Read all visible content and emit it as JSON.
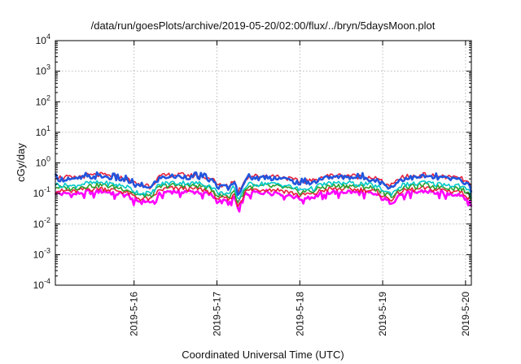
{
  "chart_data": {
    "type": "line",
    "title": "/data/run/goesPlots/archive/2019-05-20/02:00/flux/../bryn/5daysMoon.plot",
    "xlabel": "Coordinated Universal Time (UTC)",
    "ylabel": "cGy/day",
    "yscale": "log",
    "ylim": [
      0.0001,
      10000
    ],
    "xlim": [
      0.0,
      5.02
    ],
    "grid": true,
    "y_ticks": [
      {
        "base": "10",
        "exp": "-4",
        "value": 0.0001
      },
      {
        "base": "10",
        "exp": "-3",
        "value": 0.001
      },
      {
        "base": "10",
        "exp": "-2",
        "value": 0.01
      },
      {
        "base": "10",
        "exp": "-1",
        "value": 0.1
      },
      {
        "base": "10",
        "exp": "0",
        "value": 1
      },
      {
        "base": "10",
        "exp": "1",
        "value": 10
      },
      {
        "base": "10",
        "exp": "2",
        "value": 100
      },
      {
        "base": "10",
        "exp": "3",
        "value": 1000
      },
      {
        "base": "10",
        "exp": "4",
        "value": 10000
      }
    ],
    "x_ticks": [
      {
        "label": "2019-5-16",
        "value": 0.95
      },
      {
        "label": "2019-5-17",
        "value": 1.95
      },
      {
        "label": "2019-5-18",
        "value": 2.95
      },
      {
        "label": "2019-5-19",
        "value": 3.95
      },
      {
        "label": "2019-5-20",
        "value": 4.95
      }
    ],
    "series": [
      {
        "color": "#ff00ff",
        "level": 0.105
      },
      {
        "color": "#e8203a",
        "level": 0.13
      },
      {
        "color": "#2ca02c",
        "level": 0.165
      },
      {
        "color": "#00c8c8",
        "level": 0.2
      },
      {
        "color": "#e8203a",
        "level": 0.36
      },
      {
        "color": "#2255dd",
        "level": 0.32
      }
    ],
    "envelope": [
      [
        0.0,
        1.0
      ],
      [
        0.05,
        0.95
      ],
      [
        0.1,
        0.9
      ],
      [
        0.15,
        0.98
      ],
      [
        0.2,
        0.85
      ],
      [
        0.25,
        0.92
      ],
      [
        0.3,
        1.0
      ],
      [
        0.35,
        1.05
      ],
      [
        0.4,
        1.1
      ],
      [
        0.45,
        1.08
      ],
      [
        0.5,
        1.12
      ],
      [
        0.55,
        1.15
      ],
      [
        0.6,
        1.1
      ],
      [
        0.65,
        1.05
      ],
      [
        0.7,
        1.0
      ],
      [
        0.75,
        0.95
      ],
      [
        0.8,
        0.9
      ],
      [
        0.85,
        0.85
      ],
      [
        0.9,
        0.75
      ],
      [
        0.95,
        0.6
      ],
      [
        1.0,
        0.55
      ],
      [
        1.05,
        0.5
      ],
      [
        1.1,
        0.55
      ],
      [
        1.15,
        0.45
      ],
      [
        1.2,
        0.7
      ],
      [
        1.25,
        0.95
      ],
      [
        1.3,
        1.05
      ],
      [
        1.35,
        1.1
      ],
      [
        1.4,
        1.15
      ],
      [
        1.45,
        1.1
      ],
      [
        1.5,
        1.12
      ],
      [
        1.55,
        1.15
      ],
      [
        1.6,
        1.1
      ],
      [
        1.65,
        1.05
      ],
      [
        1.7,
        1.1
      ],
      [
        1.75,
        1.05
      ],
      [
        1.8,
        1.0
      ],
      [
        1.85,
        0.9
      ],
      [
        1.9,
        0.8
      ],
      [
        1.95,
        0.55
      ],
      [
        2.0,
        0.5
      ],
      [
        2.05,
        0.55
      ],
      [
        2.1,
        0.45
      ],
      [
        2.15,
        0.8
      ],
      [
        2.2,
        0.3
      ],
      [
        2.25,
        0.5
      ],
      [
        2.3,
        0.9
      ],
      [
        2.35,
        1.0
      ],
      [
        2.4,
        1.05
      ],
      [
        2.45,
        1.0
      ],
      [
        2.5,
        1.05
      ],
      [
        2.55,
        1.1
      ],
      [
        2.6,
        1.0
      ],
      [
        2.65,
        1.05
      ],
      [
        2.7,
        1.0
      ],
      [
        2.75,
        0.95
      ],
      [
        2.8,
        0.9
      ],
      [
        2.85,
        0.8
      ],
      [
        2.9,
        0.75
      ],
      [
        2.95,
        0.65
      ],
      [
        3.0,
        0.7
      ],
      [
        3.05,
        0.75
      ],
      [
        3.1,
        0.7
      ],
      [
        3.15,
        0.8
      ],
      [
        3.2,
        0.95
      ],
      [
        3.25,
        1.0
      ],
      [
        3.3,
        1.05
      ],
      [
        3.35,
        1.1
      ],
      [
        3.4,
        1.05
      ],
      [
        3.45,
        1.1
      ],
      [
        3.5,
        1.08
      ],
      [
        3.55,
        1.1
      ],
      [
        3.6,
        1.05
      ],
      [
        3.65,
        1.0
      ],
      [
        3.7,
        1.05
      ],
      [
        3.75,
        1.0
      ],
      [
        3.8,
        0.95
      ],
      [
        3.85,
        0.9
      ],
      [
        3.9,
        0.8
      ],
      [
        3.95,
        0.65
      ],
      [
        4.0,
        0.55
      ],
      [
        4.05,
        0.5
      ],
      [
        4.1,
        0.6
      ],
      [
        4.15,
        0.85
      ],
      [
        4.2,
        0.95
      ],
      [
        4.25,
        1.0
      ],
      [
        4.3,
        1.05
      ],
      [
        4.35,
        1.0
      ],
      [
        4.4,
        1.1
      ],
      [
        4.45,
        1.15
      ],
      [
        4.5,
        1.1
      ],
      [
        4.55,
        1.05
      ],
      [
        4.6,
        1.0
      ],
      [
        4.65,
        1.05
      ],
      [
        4.7,
        1.0
      ],
      [
        4.75,
        0.95
      ],
      [
        4.8,
        0.9
      ],
      [
        4.85,
        0.95
      ],
      [
        4.9,
        0.85
      ],
      [
        4.95,
        0.7
      ],
      [
        5.0,
        0.55
      ],
      [
        5.02,
        0.4
      ]
    ]
  }
}
